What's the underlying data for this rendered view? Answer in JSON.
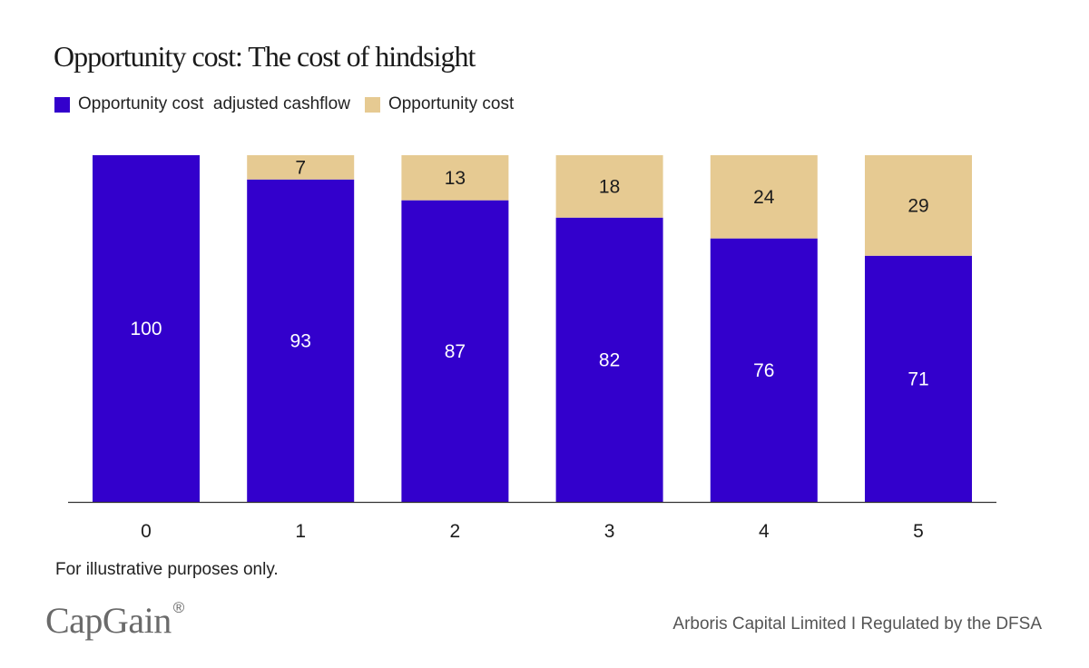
{
  "chart_data": {
    "type": "bar",
    "stacked": true,
    "title": "Opportunity cost: The cost of hindsight",
    "categories": [
      "0",
      "1",
      "2",
      "3",
      "4",
      "5"
    ],
    "series": [
      {
        "name": "Opportunity cost  adjusted cashflow",
        "color": "#3300cc",
        "label_color": "#ffffff",
        "values": [
          100,
          93,
          87,
          82,
          76,
          71
        ]
      },
      {
        "name": "Opportunity cost",
        "color": "#e6ca92",
        "label_color": "#1c1c1c",
        "values": [
          0,
          7,
          13,
          18,
          24,
          29
        ]
      }
    ],
    "xlabel": "",
    "ylabel": "",
    "ylim": [
      0,
      100
    ],
    "grid": false,
    "legend_position": "top-left"
  },
  "note": "For illustrative purposes only.",
  "brand": {
    "name": "CapGain",
    "mark": "®"
  },
  "footer": "Arboris Capital Limited I Regulated by the DFSA"
}
